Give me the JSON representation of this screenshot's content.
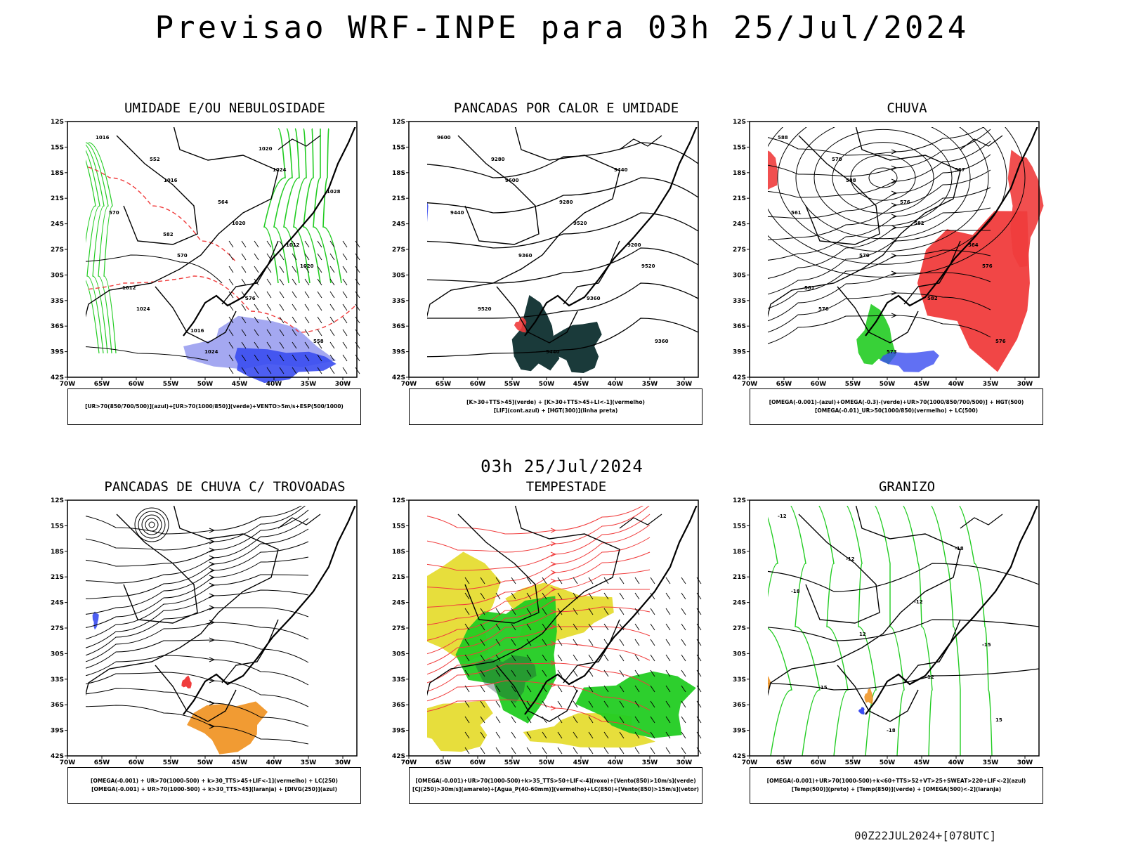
{
  "header": {
    "title": "Previsao WRF-INPE  para 03h 25/Jul/2024",
    "subtitle": "03h 25/Jul/2024",
    "run_stamp": "00Z22JUL2024+[078UTC]"
  },
  "axes": {
    "lat_labels": [
      "12S",
      "15S",
      "18S",
      "21S",
      "24S",
      "27S",
      "30S",
      "33S",
      "36S",
      "39S",
      "42S"
    ],
    "lon_labels": [
      "70W",
      "65W",
      "60W",
      "55W",
      "50W",
      "45W",
      "40W",
      "35W",
      "30W"
    ]
  },
  "panels": [
    {
      "title": "UMIDADE E/OU NEBULOSIDADE",
      "legend": [
        "[UR>70(850/700/500)](azul)+[UR>70(1000/850)](verde)+VENTO>5m/s+ESP(500/1000)"
      ],
      "labels": [
        "1016",
        "1016",
        "1020",
        "1020",
        "1024",
        "1024",
        "1024",
        "570",
        "570",
        "576",
        "558",
        "552",
        "564",
        "1012",
        "1012",
        "1016",
        "1020",
        "1028",
        "582"
      ]
    },
    {
      "title": "PANCADAS POR CALOR E UMIDADE",
      "legend": [
        "[K>30+TTS>45](verde) + [K>30+TTS>45+LI<-1](vermelho)",
        "[LIF](cont.azul) + [HGT(300)](linha preta)"
      ],
      "labels": [
        "9600",
        "9600",
        "9520",
        "9520",
        "9520",
        "9440",
        "9440",
        "9440",
        "9360",
        "9360",
        "9360",
        "9280",
        "9280",
        "9200"
      ]
    },
    {
      "title": "CHUVA",
      "legend": [
        "[OMEGA(-0.001)-(azul)+OMEGA(-0.3)-(verde)+UR>70(1000/850/700/500)] + HGT(500)",
        "[OMEGA(-0.01)_UR>50(1000/850)(vermelho) + LC(500)"
      ],
      "labels": [
        "588",
        "588",
        "582",
        "576",
        "576",
        "573",
        "567",
        "561",
        "570",
        "582",
        "576",
        "570",
        "576",
        "564",
        "561"
      ]
    },
    {
      "title": "PANCADAS DE CHUVA C/ TROVOADAS",
      "legend": [
        "[OMEGA(-0.001) + UR>70(1000-500) + k>30_TTS>45+LIF<-1](vermelho) + LC(250)",
        "[OMEGA(-0.001) + UR>70(1000-500) + k>30_TTS>45](laranja) + [DIVG(250)](azul)"
      ],
      "labels": []
    },
    {
      "title": "TEMPESTADE",
      "legend": [
        "[OMEGA(-0.001)+UR>70(1000-500)+k>35_TTS>50+LIF<-4](roxo)+[Vento(850)>10m/s](verde)",
        "[CJ(250)>30m/s](amarelo)+[Agua_P(40-60mm)](vermelho)+LC(850)+[Vento(850)>15m/s](vetor)"
      ],
      "labels": []
    },
    {
      "title": "GRANIZO",
      "legend": [
        "[OMEGA(-0.001)+UR>70(1000-500)+k<60+TTS>52+VT>25+SWEAT>220+LIF<-2](azul)",
        "[Temp(500)](preto) + [Temp(850)](verde) + [OMEGA(500)<-2](laranja)"
      ],
      "labels": [
        "-12",
        "-12",
        "-12",
        "-15",
        "-15",
        "-18",
        "-18",
        "-18",
        "12",
        "12",
        "15"
      ]
    }
  ],
  "colors": {
    "red": "#f03c3c",
    "green": "#22cc22",
    "blue": "#3a4cf0",
    "lightblue": "#9a9ef0",
    "darkteal": "#1a3a3a",
    "yellow": "#e6dc32",
    "orange": "#f09628"
  }
}
